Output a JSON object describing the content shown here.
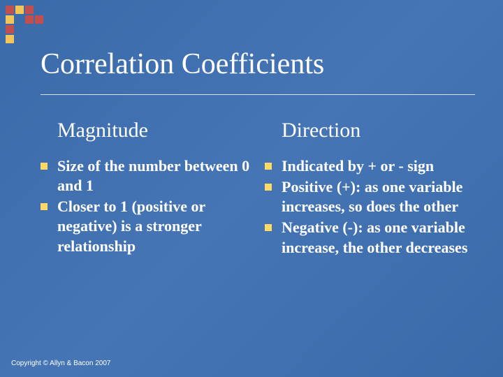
{
  "slide": {
    "title": "Correlation Coefficients",
    "background_gradient": [
      "#3a6aa8",
      "#4575b5",
      "#3a6aa8"
    ],
    "title_fontsize": 42,
    "title_color": "#ffffff",
    "underline_color": "#d7e2f0"
  },
  "decoration": {
    "grid_size": 4,
    "cell_size": 12,
    "gap": 2,
    "cells": [
      {
        "r": 0,
        "c": 0,
        "color": "#c0504d"
      },
      {
        "r": 0,
        "c": 1,
        "color": "#f2c45a"
      },
      {
        "r": 0,
        "c": 2,
        "color": "#c0504d"
      },
      {
        "r": 1,
        "c": 0,
        "color": "#f2c45a"
      },
      {
        "r": 1,
        "c": 2,
        "color": "#c0504d"
      },
      {
        "r": 1,
        "c": 3,
        "color": "#c0504d"
      },
      {
        "r": 2,
        "c": 0,
        "color": "#c0504d"
      },
      {
        "r": 3,
        "c": 0,
        "color": "#f2c45a"
      }
    ]
  },
  "left_column": {
    "heading": "Magnitude",
    "heading_fontsize": 30,
    "bullets": [
      "Size of the number between 0 and 1",
      "Closer to 1 (positive or negative) is a stronger relationship"
    ]
  },
  "right_column": {
    "heading": "Direction",
    "heading_fontsize": 30,
    "bullets": [
      "Indicated by + or - sign",
      "Positive (+): as one variable increases, so does the other",
      "Negative (-): as one variable increase, the other decreases"
    ]
  },
  "bullet_style": {
    "marker_color": "#ffd966",
    "marker_size": 10,
    "text_fontsize": 22,
    "text_weight": "bold",
    "text_color": "#ffffff"
  },
  "footer": {
    "text": "Copyright © Allyn & Bacon 2007",
    "fontsize": 10,
    "color": "#ffffff"
  }
}
